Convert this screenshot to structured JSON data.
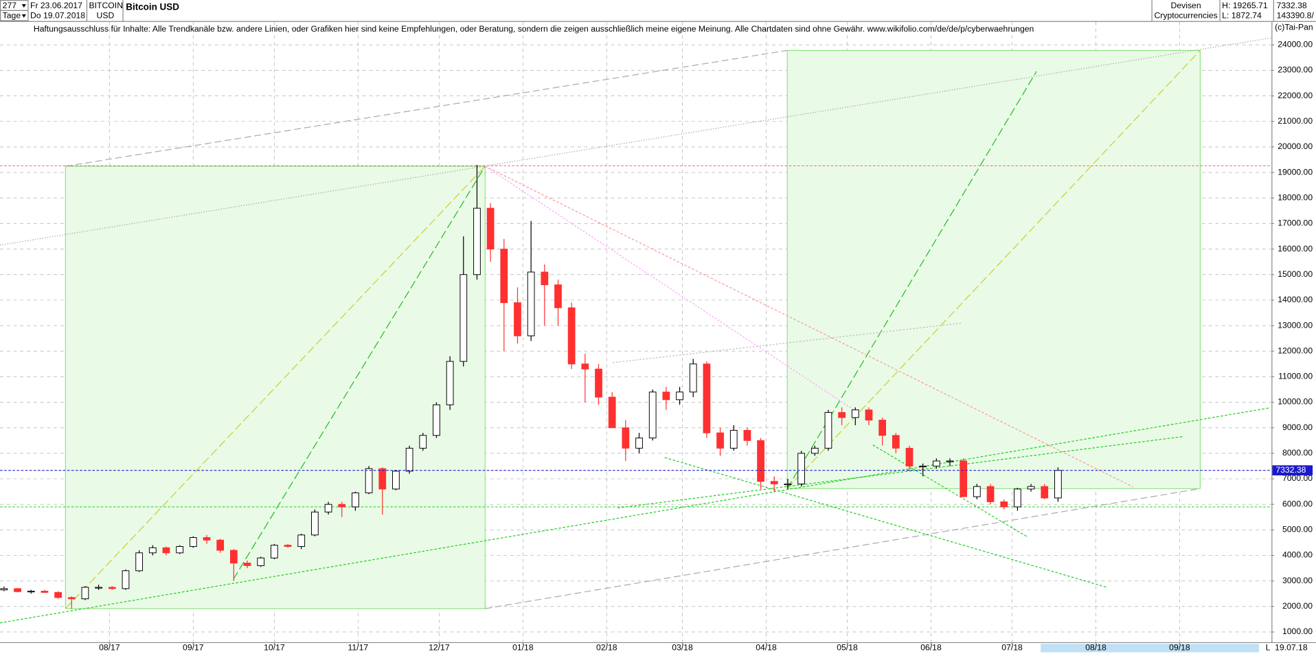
{
  "header": {
    "count": "277",
    "start": "Fr 23.06.2017",
    "symbol": "BITCOIN",
    "currency": "USD",
    "period": "Tage",
    "end": "Do 19.07.2018",
    "group": "Devisen",
    "subgroup": "Cryptocurrencies",
    "high": "H: 19265.71",
    "low": "L: 1872.74",
    "last": "7332.38",
    "volume": "143390.8/",
    "disclaimer": "Haftungsausschluss für Inhalte: Alle Trendkanäle bzw. andere Linien, oder Grafiken hier sind keine Empfehlungen, oder Beratung, sondern die zeigen ausschließlich meine eigene Meinung. Alle Chartdaten sind ohne Gewähr.  www.wikifolio.com/de/de/p/cyberwaehrungen",
    "copyright": "(c)Tai-Pan",
    "date_end": "19.07.18",
    "scale_mode": "L"
  },
  "chart_data": {
    "type": "candlestick",
    "title": "Bitcoin USD",
    "x": [
      0,
      5,
      10,
      15,
      20,
      25,
      30,
      35,
      40,
      45,
      50,
      55,
      60,
      65,
      70,
      75,
      80,
      85,
      90,
      95,
      100,
      105,
      110,
      115,
      120,
      125,
      130,
      135,
      140,
      145,
      150,
      155,
      160,
      165,
      170,
      175,
      180,
      185,
      190,
      195,
      200,
      205,
      210,
      215,
      220,
      225,
      230,
      235,
      240,
      245,
      250,
      255,
      260,
      265,
      270,
      275,
      280,
      285,
      290,
      295,
      300,
      305,
      310,
      315,
      320,
      325,
      330,
      335,
      340,
      345,
      350,
      355,
      360,
      365,
      370,
      375,
      380,
      385,
      390
    ],
    "open": [
      2650,
      2700,
      2580,
      2600,
      2550,
      2350,
      2300,
      2750,
      2750,
      2700,
      3400,
      4100,
      4300,
      4100,
      4350,
      4700,
      4600,
      4200,
      3700,
      3600,
      3900,
      4400,
      4350,
      4800,
      5700,
      6000,
      5900,
      6450,
      7400,
      6600,
      7300,
      8200,
      8700,
      9900,
      11600,
      15000,
      17600,
      16000,
      13900,
      12600,
      15100,
      14600,
      13700,
      11500,
      11300,
      10200,
      9000,
      8200,
      8600,
      10400,
      10100,
      10400,
      11500,
      8800,
      8200,
      8900,
      8500,
      6900,
      6800,
      6800,
      8000,
      8200,
      9600,
      9400,
      9700,
      9300,
      8700,
      8200,
      7500,
      7500,
      7700,
      7700,
      6300,
      6700,
      6100,
      5900,
      6600,
      6700,
      6250
    ],
    "high": [
      2780,
      2720,
      2650,
      2650,
      2600,
      2400,
      2800,
      2850,
      2800,
      3450,
      4200,
      4400,
      4350,
      4400,
      4750,
      4800,
      4650,
      4250,
      3800,
      3950,
      4450,
      4450,
      4850,
      5800,
      6100,
      6100,
      6500,
      7500,
      7450,
      7350,
      8300,
      8800,
      10000,
      11800,
      16500,
      19300,
      17800,
      16400,
      14500,
      17100,
      15400,
      14800,
      13900,
      11900,
      11500,
      10400,
      9300,
      8800,
      10500,
      10600,
      10600,
      11700,
      11600,
      9000,
      9100,
      9000,
      8600,
      7100,
      7000,
      8100,
      8300,
      9700,
      9800,
      9800,
      9800,
      9400,
      8800,
      8300,
      7600,
      7800,
      7800,
      7800,
      6800,
      6800,
      6200,
      6650,
      6800,
      6800,
      7450
    ],
    "low": [
      2600,
      2550,
      2500,
      2530,
      2300,
      1900,
      2250,
      2650,
      2650,
      2650,
      3350,
      4000,
      4000,
      4050,
      4300,
      4450,
      4100,
      3000,
      3500,
      3550,
      3850,
      4300,
      4250,
      4750,
      5600,
      5500,
      5750,
      6400,
      5600,
      6550,
      7200,
      8100,
      8600,
      9700,
      11400,
      14800,
      15500,
      12000,
      12300,
      12400,
      13000,
      13000,
      11300,
      10000,
      9900,
      9000,
      7700,
      8000,
      8500,
      9700,
      9900,
      10200,
      8600,
      7900,
      8100,
      8300,
      6600,
      6500,
      6600,
      6700,
      7900,
      8100,
      9100,
      9100,
      9100,
      8300,
      8000,
      7300,
      7100,
      7400,
      7500,
      6300,
      6200,
      6000,
      5800,
      5750,
      6500,
      6200,
      6100
    ],
    "close": [
      2700,
      2580,
      2600,
      2550,
      2350,
      2300,
      2750,
      2750,
      2700,
      3400,
      4100,
      4300,
      4100,
      4350,
      4700,
      4600,
      4200,
      3700,
      3600,
      3900,
      4400,
      4350,
      4800,
      5700,
      6000,
      5900,
      6450,
      7400,
      6600,
      7300,
      8200,
      8700,
      9900,
      11600,
      15000,
      17600,
      16000,
      13900,
      12600,
      15100,
      14600,
      13700,
      11500,
      11300,
      10200,
      9000,
      8200,
      8600,
      10400,
      10100,
      10400,
      11500,
      8800,
      8200,
      8900,
      8500,
      6900,
      6800,
      6800,
      8000,
      8200,
      9600,
      9400,
      9700,
      9300,
      8700,
      8200,
      7500,
      7500,
      7700,
      7700,
      6300,
      6700,
      6100,
      5900,
      6600,
      6700,
      6250,
      7330
    ],
    "up_color": "#ffffff",
    "down_color": "#ff3030",
    "last_price": 7332.38,
    "high_line": 19265.71,
    "support_line": 5900,
    "xlim": [
      -1.5,
      469
    ],
    "xticks": [
      {
        "value": 39,
        "label": "08/17"
      },
      {
        "value": 70,
        "label": "09/17"
      },
      {
        "value": 100,
        "label": "10/17"
      },
      {
        "value": 131,
        "label": "11/17"
      },
      {
        "value": 161,
        "label": "12/17"
      },
      {
        "value": 192,
        "label": "01/18"
      },
      {
        "value": 223,
        "label": "02/18"
      },
      {
        "value": 251,
        "label": "03/18"
      },
      {
        "value": 282,
        "label": "04/18"
      },
      {
        "value": 312,
        "label": "05/18"
      },
      {
        "value": 343,
        "label": "06/18"
      },
      {
        "value": 373,
        "label": "07/18"
      },
      {
        "value": 404,
        "label": "08/18"
      },
      {
        "value": 435,
        "label": "09/18"
      }
    ],
    "ylim": [
      600,
      24900
    ],
    "yticks": [
      {
        "value": 1000,
        "label": "1000.00"
      },
      {
        "value": 2000,
        "label": "2000.00"
      },
      {
        "value": 3000,
        "label": "3000.00"
      },
      {
        "value": 4000,
        "label": "4000.00"
      },
      {
        "value": 5000,
        "label": "5000.00"
      },
      {
        "value": 6000,
        "label": "6000.00"
      },
      {
        "value": 7000,
        "label": "7000.00"
      },
      {
        "value": 8000,
        "label": "8000.00"
      },
      {
        "value": 9000,
        "label": "9000.00"
      },
      {
        "value": 10000,
        "label": "10000.00"
      },
      {
        "value": 11000,
        "label": "11000.00"
      },
      {
        "value": 12000,
        "label": "12000.00"
      },
      {
        "value": 13000,
        "label": "13000.00"
      },
      {
        "value": 14000,
        "label": "14000.00"
      },
      {
        "value": 15000,
        "label": "15000.00"
      },
      {
        "value": 16000,
        "label": "16000.00"
      },
      {
        "value": 17000,
        "label": "17000.00"
      },
      {
        "value": 18000,
        "label": "18000.00"
      },
      {
        "value": 19000,
        "label": "19000.00"
      },
      {
        "value": 20000,
        "label": "20000.00"
      },
      {
        "value": 21000,
        "label": "21000.00"
      },
      {
        "value": 22000,
        "label": "22000.00"
      },
      {
        "value": 23000,
        "label": "23000.00"
      },
      {
        "value": 24000,
        "label": "24000.00"
      }
    ],
    "grid": true
  }
}
